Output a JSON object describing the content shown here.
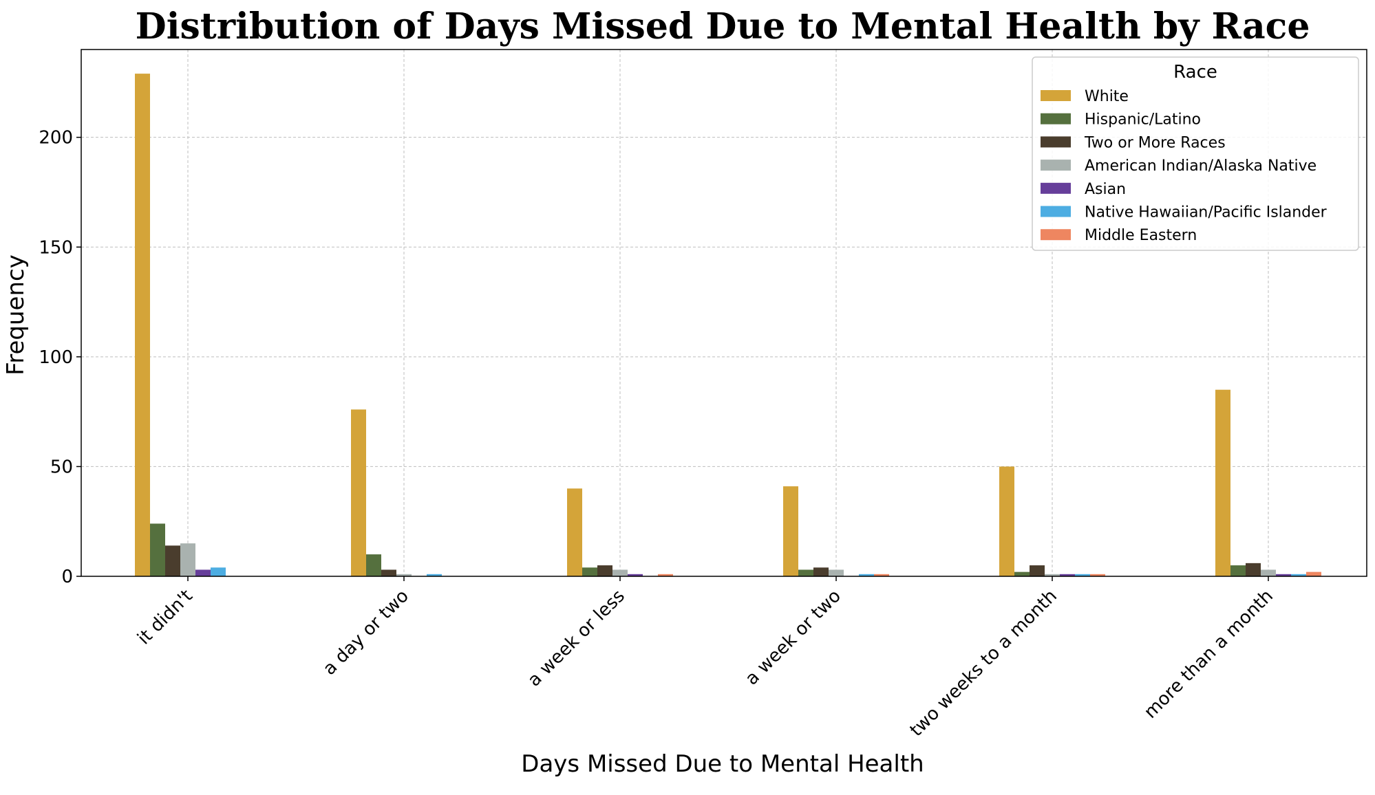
{
  "chart_data": {
    "type": "bar",
    "title": "Distribution of Days Missed Due to Mental Health by Race",
    "xlabel": "Days Missed Due to Mental Health",
    "ylabel": "Frequency",
    "ylim": [
      0,
      240
    ],
    "yticks": [
      0,
      50,
      100,
      150,
      200
    ],
    "grid": true,
    "legend_title": "Race",
    "legend_position": "top-right",
    "categories": [
      "it didn't",
      "a day or two",
      "a week or less",
      "a week or two",
      "two weeks to a month",
      "more than a month"
    ],
    "series": [
      {
        "name": "White",
        "color": "#D4A439",
        "values": [
          229,
          76,
          40,
          41,
          50,
          85
        ]
      },
      {
        "name": "Hispanic/Latino",
        "color": "#55703E",
        "values": [
          24,
          10,
          4,
          3,
          2,
          5
        ]
      },
      {
        "name": "Two or More Races",
        "color": "#4A3D2D",
        "values": [
          14,
          3,
          5,
          4,
          5,
          6
        ]
      },
      {
        "name": "American Indian/Alaska Native",
        "color": "#A9B2AF",
        "values": [
          15,
          1,
          3,
          3,
          1,
          3
        ]
      },
      {
        "name": "Asian",
        "color": "#663E9A",
        "values": [
          3,
          0,
          1,
          0,
          1,
          1
        ]
      },
      {
        "name": "Native Hawaiian/Pacific Islander",
        "color": "#4DADE2",
        "values": [
          4,
          1,
          0,
          1,
          1,
          1
        ]
      },
      {
        "name": "Middle Eastern",
        "color": "#EE8660",
        "values": [
          0,
          0,
          1,
          1,
          1,
          2
        ]
      }
    ]
  }
}
